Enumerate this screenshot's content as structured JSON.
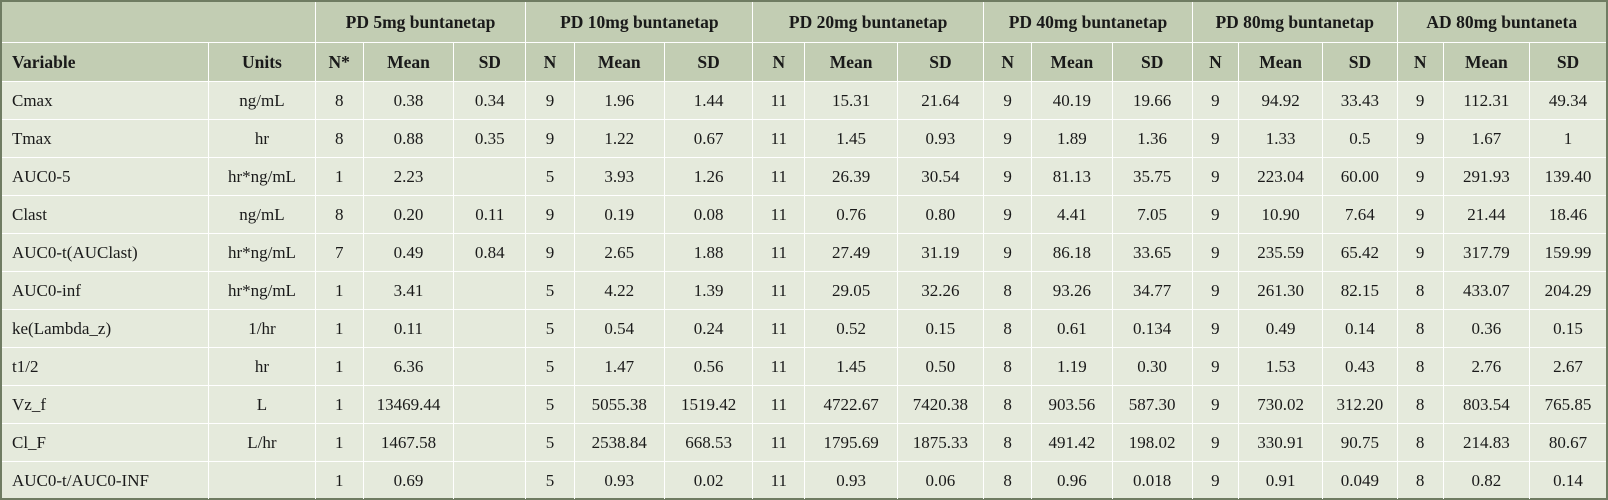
{
  "table": {
    "groups": [
      "PD 5mg buntanetap",
      "PD 10mg buntanetap",
      "PD 20mg buntanetap",
      "PD 40mg buntanetap",
      "PD 80mg buntanetap",
      "AD 80mg buntaneta"
    ],
    "columns": {
      "variable": "Variable",
      "units": "Units",
      "subcols": [
        [
          "N*",
          "Mean",
          "SD"
        ],
        [
          "N",
          "Mean",
          "SD"
        ],
        [
          "N",
          "Mean",
          "SD"
        ],
        [
          "N",
          "Mean",
          "SD"
        ],
        [
          "N",
          "Mean",
          "SD"
        ],
        [
          "N",
          "Mean",
          "SD"
        ]
      ]
    },
    "rows": [
      {
        "variable": "Cmax",
        "units": "ng/mL",
        "values": [
          [
            "8",
            "0.38",
            "0.34"
          ],
          [
            "9",
            "1.96",
            "1.44"
          ],
          [
            "11",
            "15.31",
            "21.64"
          ],
          [
            "9",
            "40.19",
            "19.66"
          ],
          [
            "9",
            "94.92",
            "33.43"
          ],
          [
            "9",
            "112.31",
            "49.34"
          ]
        ]
      },
      {
        "variable": "Tmax",
        "units": "hr",
        "values": [
          [
            "8",
            "0.88",
            "0.35"
          ],
          [
            "9",
            "1.22",
            "0.67"
          ],
          [
            "11",
            "1.45",
            "0.93"
          ],
          [
            "9",
            "1.89",
            "1.36"
          ],
          [
            "9",
            "1.33",
            "0.5"
          ],
          [
            "9",
            "1.67",
            "1"
          ]
        ]
      },
      {
        "variable": "AUC0-5",
        "units": "hr*ng/mL",
        "values": [
          [
            "1",
            "2.23",
            ""
          ],
          [
            "5",
            "3.93",
            "1.26"
          ],
          [
            "11",
            "26.39",
            "30.54"
          ],
          [
            "9",
            "81.13",
            "35.75"
          ],
          [
            "9",
            "223.04",
            "60.00"
          ],
          [
            "9",
            "291.93",
            "139.40"
          ]
        ]
      },
      {
        "variable": "Clast",
        "units": "ng/mL",
        "values": [
          [
            "8",
            "0.20",
            "0.11"
          ],
          [
            "9",
            "0.19",
            "0.08"
          ],
          [
            "11",
            "0.76",
            "0.80"
          ],
          [
            "9",
            "4.41",
            "7.05"
          ],
          [
            "9",
            "10.90",
            "7.64"
          ],
          [
            "9",
            "21.44",
            "18.46"
          ]
        ]
      },
      {
        "variable": "AUC0-t(AUClast)",
        "units": "hr*ng/mL",
        "values": [
          [
            "7",
            "0.49",
            "0.84"
          ],
          [
            "9",
            "2.65",
            "1.88"
          ],
          [
            "11",
            "27.49",
            "31.19"
          ],
          [
            "9",
            "86.18",
            "33.65"
          ],
          [
            "9",
            "235.59",
            "65.42"
          ],
          [
            "9",
            "317.79",
            "159.99"
          ]
        ]
      },
      {
        "variable": "AUC0-inf",
        "units": "hr*ng/mL",
        "values": [
          [
            "1",
            "3.41",
            ""
          ],
          [
            "5",
            "4.22",
            "1.39"
          ],
          [
            "11",
            "29.05",
            "32.26"
          ],
          [
            "8",
            "93.26",
            "34.77"
          ],
          [
            "9",
            "261.30",
            "82.15"
          ],
          [
            "8",
            "433.07",
            "204.29"
          ]
        ]
      },
      {
        "variable": "ke(Lambda_z)",
        "units": "1/hr",
        "values": [
          [
            "1",
            "0.11",
            ""
          ],
          [
            "5",
            "0.54",
            "0.24"
          ],
          [
            "11",
            "0.52",
            "0.15"
          ],
          [
            "8",
            "0.61",
            "0.134"
          ],
          [
            "9",
            "0.49",
            "0.14"
          ],
          [
            "8",
            "0.36",
            "0.15"
          ]
        ]
      },
      {
        "variable": "t1/2",
        "units": "hr",
        "values": [
          [
            "1",
            "6.36",
            ""
          ],
          [
            "5",
            "1.47",
            "0.56"
          ],
          [
            "11",
            "1.45",
            "0.50"
          ],
          [
            "8",
            "1.19",
            "0.30"
          ],
          [
            "9",
            "1.53",
            "0.43"
          ],
          [
            "8",
            "2.76",
            "2.67"
          ]
        ]
      },
      {
        "variable": "Vz_f",
        "units": "L",
        "values": [
          [
            "1",
            "13469.44",
            ""
          ],
          [
            "5",
            "5055.38",
            "1519.42"
          ],
          [
            "11",
            "4722.67",
            "7420.38"
          ],
          [
            "8",
            "903.56",
            "587.30"
          ],
          [
            "9",
            "730.02",
            "312.20"
          ],
          [
            "8",
            "803.54",
            "765.85"
          ]
        ]
      },
      {
        "variable": "Cl_F",
        "units": "L/hr",
        "values": [
          [
            "1",
            "1467.58",
            ""
          ],
          [
            "5",
            "2538.84",
            "668.53"
          ],
          [
            "11",
            "1795.69",
            "1875.33"
          ],
          [
            "8",
            "491.42",
            "198.02"
          ],
          [
            "9",
            "330.91",
            "90.75"
          ],
          [
            "8",
            "214.83",
            "80.67"
          ]
        ]
      },
      {
        "variable": "AUC0-t/AUC0-INF",
        "units": "",
        "values": [
          [
            "1",
            "0.69",
            ""
          ],
          [
            "5",
            "0.93",
            "0.02"
          ],
          [
            "11",
            "0.93",
            "0.06"
          ],
          [
            "8",
            "0.96",
            "0.018"
          ],
          [
            "9",
            "0.91",
            "0.049"
          ],
          [
            "8",
            "0.82",
            "0.14"
          ]
        ]
      }
    ]
  }
}
